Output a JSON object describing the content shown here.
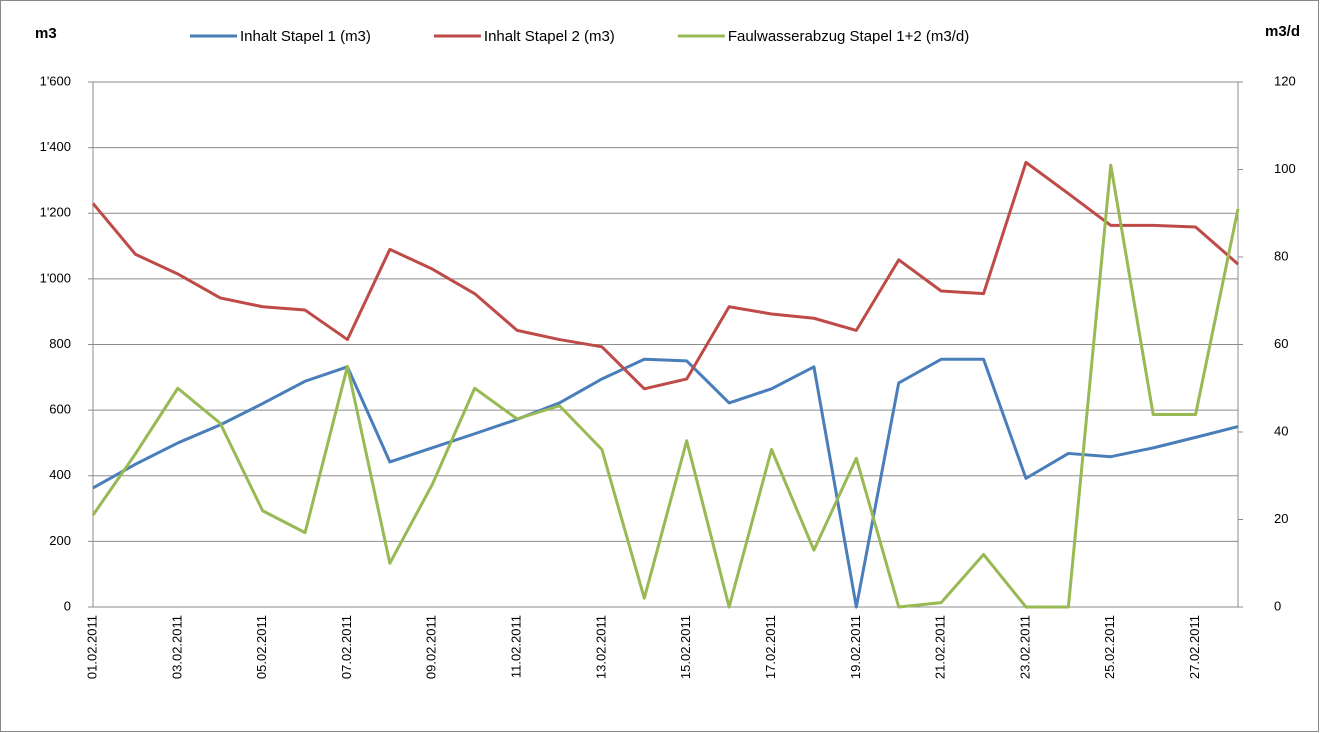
{
  "chart_data": {
    "type": "line",
    "y_label": "m3",
    "y2_label": "m3/d",
    "categories": [
      "01.02.2011",
      null,
      "03.02.2011",
      null,
      "05.02.2011",
      null,
      "07.02.2011",
      null,
      "09.02.2011",
      null,
      "11.02.2011",
      null,
      "13.02.2011",
      null,
      "15.02.2011",
      null,
      "17.02.2011",
      null,
      "19.02.2011",
      null,
      "21.02.2011",
      null,
      "23.02.2011",
      null,
      "25.02.2011",
      null,
      "27.02.2011",
      null
    ],
    "series": [
      {
        "name": "Inhalt Stapel 1 (m3)",
        "color": "#4a7ebb",
        "values": [
          363,
          435,
          500,
          555,
          620,
          688,
          732,
          442,
          485,
          528,
          572,
          622,
          695,
          755,
          750,
          622,
          665,
          732,
          0,
          683,
          755,
          755,
          392,
          468,
          458,
          485,
          517,
          550
        ]
      },
      {
        "name": "Inhalt Stapel 2 (m3)",
        "color": "#be4b48",
        "values": [
          1230,
          1075,
          1015,
          942,
          915,
          905,
          815,
          1090,
          1030,
          955,
          843,
          815,
          793,
          665,
          695,
          915,
          893,
          880,
          843,
          1058,
          963,
          955,
          1355,
          1260,
          1163,
          1163,
          1158,
          1045
        ]
      },
      {
        "name": "Faulwasserabzug Stapel 1+2 (m3/d)",
        "color": "#98b954",
        "axis": "y2",
        "values": [
          21,
          35,
          50,
          42,
          22,
          17,
          55,
          10,
          28,
          50,
          43,
          46,
          36,
          2,
          38,
          0,
          36,
          13,
          34,
          0,
          1,
          12,
          0,
          0,
          101,
          44,
          44,
          91
        ]
      }
    ],
    "ylim": [
      0,
      1600
    ],
    "yticks": [
      0,
      200,
      400,
      600,
      800,
      {
        "value": 1000,
        "label": "1'000"
      },
      {
        "value": 1200,
        "label": "1'200"
      },
      {
        "value": 1400,
        "label": "1'400"
      },
      {
        "value": 1600,
        "label": "1'600"
      }
    ],
    "y2lim": [
      0,
      120
    ],
    "y2ticks": [
      0,
      20,
      40,
      60,
      80,
      100,
      120
    ],
    "grid": true
  }
}
